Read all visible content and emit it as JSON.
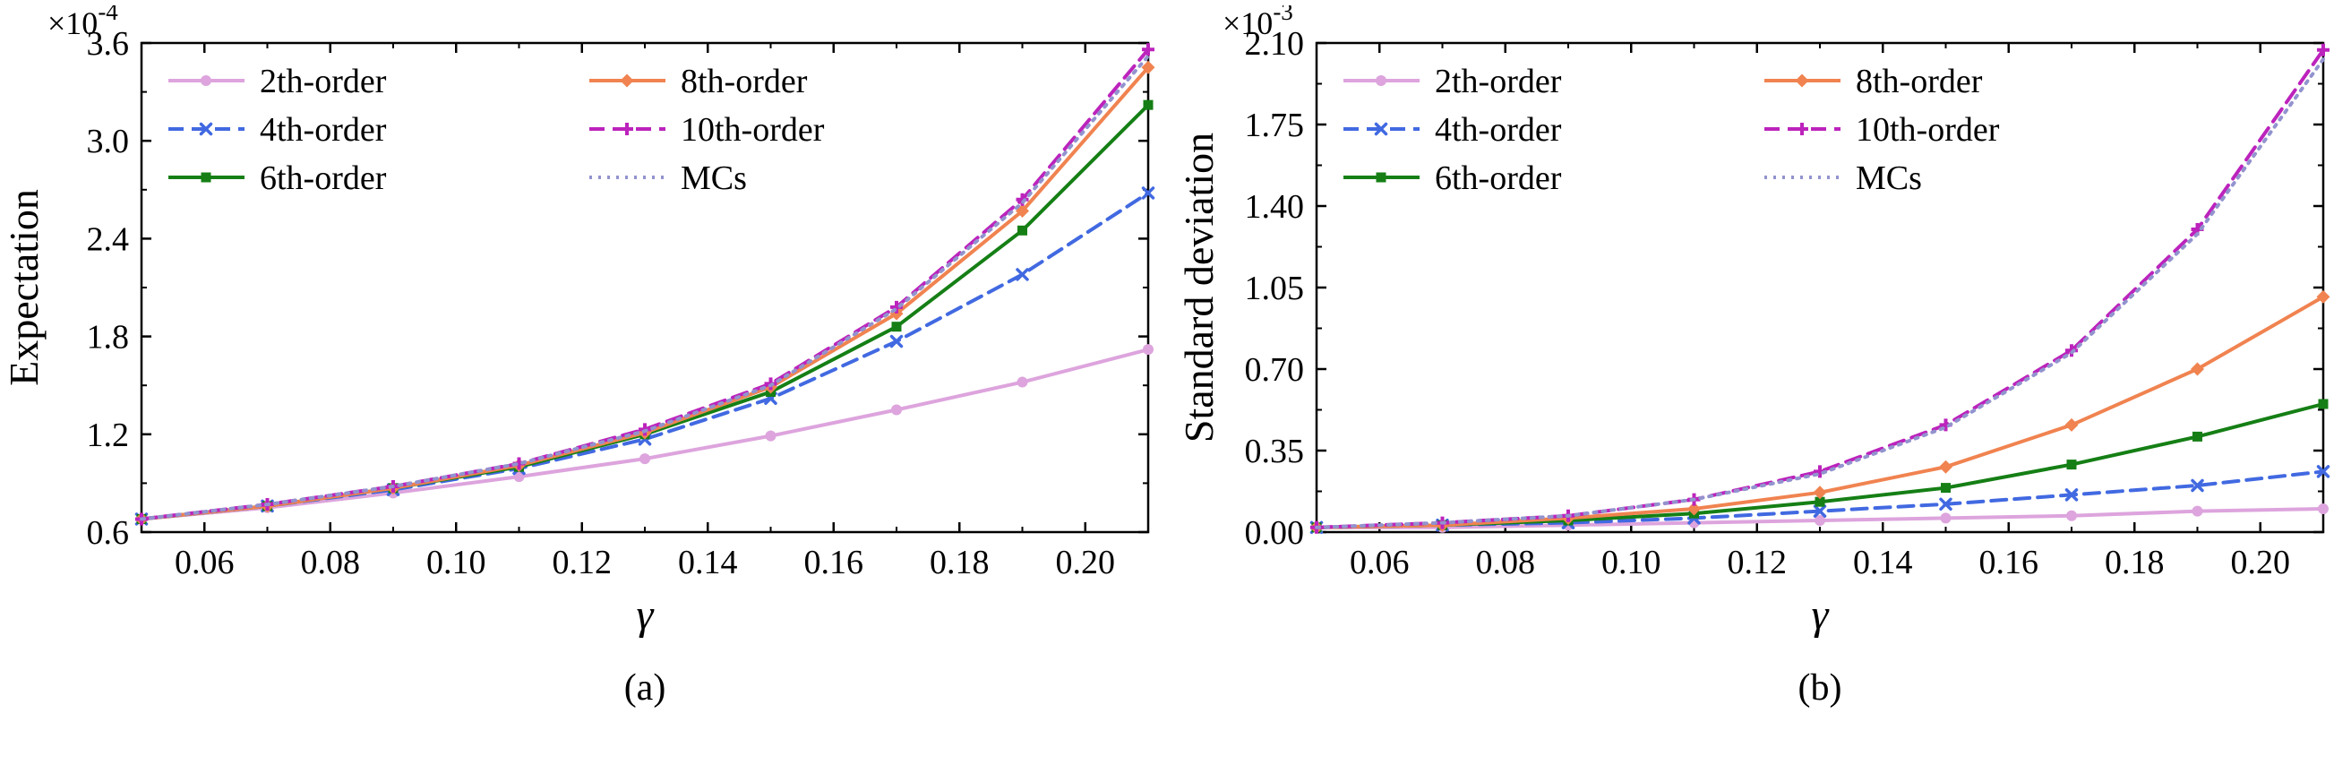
{
  "chart_data": [
    {
      "type": "line",
      "panel": "(a)",
      "xlabel": "γ",
      "ylabel": "Expectation",
      "offset_text": "×10^-4",
      "xlim": [
        0.05,
        0.21
      ],
      "ylim": [
        0.6,
        3.6
      ],
      "xticks": [
        0.06,
        0.08,
        0.1,
        0.12,
        0.14,
        0.16,
        0.18,
        0.2
      ],
      "xtick_labels": [
        "0.06",
        "0.08",
        "0.10",
        "0.12",
        "0.14",
        "0.16",
        "0.18",
        "0.20"
      ],
      "yticks": [
        0.6,
        1.2,
        1.8,
        2.4,
        3.0,
        3.6
      ],
      "ytick_labels": [
        "0.6",
        "1.2",
        "1.8",
        "2.4",
        "3.0",
        "3.6"
      ],
      "x": [
        0.05,
        0.07,
        0.09,
        0.11,
        0.13,
        0.15,
        0.17,
        0.19,
        0.21
      ],
      "legend_position": "upper left",
      "series": [
        {
          "name": "2th-order",
          "color": "#dda4dd",
          "line": "solid",
          "marker": "circle",
          "values": [
            0.68,
            0.75,
            0.84,
            0.94,
            1.05,
            1.19,
            1.35,
            1.52,
            1.72
          ]
        },
        {
          "name": "4th-order",
          "color": "#4169e1",
          "line": "dashed",
          "marker": "x",
          "values": [
            0.68,
            0.76,
            0.86,
            0.99,
            1.17,
            1.42,
            1.77,
            2.18,
            2.68
          ]
        },
        {
          "name": "6th-order",
          "color": "#157f15",
          "line": "solid",
          "marker": "square",
          "values": [
            0.68,
            0.76,
            0.87,
            1.0,
            1.2,
            1.46,
            1.86,
            2.45,
            3.22
          ]
        },
        {
          "name": "8th-order",
          "color": "#f08350",
          "line": "solid",
          "marker": "diamond",
          "values": [
            0.68,
            0.76,
            0.87,
            1.01,
            1.21,
            1.49,
            1.94,
            2.57,
            3.45
          ]
        },
        {
          "name": "10th-order",
          "color": "#bc23bc",
          "line": "dashed",
          "marker": "plus",
          "values": [
            0.68,
            0.77,
            0.88,
            1.02,
            1.23,
            1.51,
            1.98,
            2.64,
            3.56
          ]
        },
        {
          "name": "MCs",
          "color": "#9293ce",
          "line": "dotted",
          "marker": "none",
          "values": [
            0.68,
            0.77,
            0.88,
            1.02,
            1.22,
            1.5,
            1.97,
            2.62,
            3.52
          ]
        }
      ]
    },
    {
      "type": "line",
      "panel": "(b)",
      "xlabel": "γ",
      "ylabel": "Standard deviation",
      "offset_text": "×10^-3",
      "xlim": [
        0.05,
        0.21
      ],
      "ylim": [
        0.0,
        2.1
      ],
      "xticks": [
        0.06,
        0.08,
        0.1,
        0.12,
        0.14,
        0.16,
        0.18,
        0.2
      ],
      "xtick_labels": [
        "0.06",
        "0.08",
        "0.10",
        "0.12",
        "0.14",
        "0.16",
        "0.18",
        "0.20"
      ],
      "yticks": [
        0.0,
        0.35,
        0.7,
        1.05,
        1.4,
        1.75,
        2.1
      ],
      "ytick_labels": [
        "0.00",
        "0.35",
        "0.70",
        "1.05",
        "1.40",
        "1.75",
        "2.10"
      ],
      "x": [
        0.05,
        0.07,
        0.09,
        0.11,
        0.13,
        0.15,
        0.17,
        0.19,
        0.21
      ],
      "legend_position": "upper left",
      "series": [
        {
          "name": "2th-order",
          "color": "#dda4dd",
          "line": "solid",
          "marker": "circle",
          "values": [
            0.02,
            0.02,
            0.03,
            0.04,
            0.05,
            0.06,
            0.07,
            0.09,
            0.1
          ]
        },
        {
          "name": "4th-order",
          "color": "#4169e1",
          "line": "dashed",
          "marker": "x",
          "values": [
            0.02,
            0.03,
            0.04,
            0.06,
            0.09,
            0.12,
            0.16,
            0.2,
            0.26
          ]
        },
        {
          "name": "6th-order",
          "color": "#157f15",
          "line": "solid",
          "marker": "square",
          "values": [
            0.02,
            0.03,
            0.05,
            0.08,
            0.13,
            0.19,
            0.29,
            0.41,
            0.55
          ]
        },
        {
          "name": "8th-order",
          "color": "#f08350",
          "line": "solid",
          "marker": "diamond",
          "values": [
            0.02,
            0.03,
            0.06,
            0.1,
            0.17,
            0.28,
            0.46,
            0.7,
            1.01
          ]
        },
        {
          "name": "10th-order",
          "color": "#bc23bc",
          "line": "dashed",
          "marker": "plus",
          "values": [
            0.02,
            0.04,
            0.07,
            0.14,
            0.26,
            0.46,
            0.78,
            1.3,
            2.07
          ]
        },
        {
          "name": "MCs",
          "color": "#9293ce",
          "line": "dotted",
          "marker": "none",
          "values": [
            0.02,
            0.04,
            0.07,
            0.14,
            0.25,
            0.45,
            0.77,
            1.28,
            2.03
          ]
        }
      ]
    }
  ]
}
